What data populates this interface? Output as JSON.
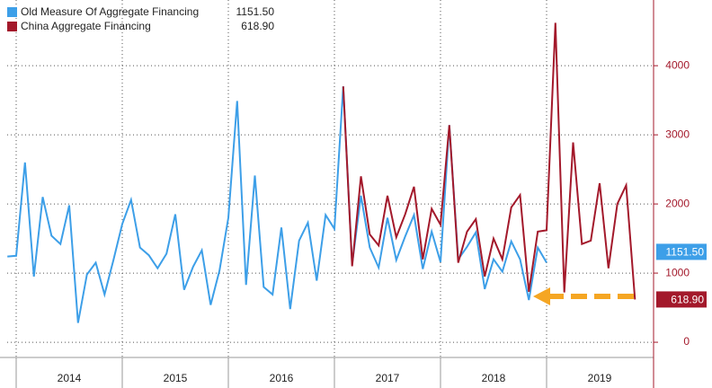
{
  "chart_data": {
    "type": "line",
    "x_labels": [
      "2014",
      "2015",
      "2016",
      "2017",
      "2018",
      "2019"
    ],
    "ylim": [
      -220,
      4950
    ],
    "yticks": [
      0,
      1000,
      2000,
      3000,
      4000
    ],
    "grid": true,
    "y_axis_side": "right",
    "legend": "top-left",
    "series": [
      {
        "name": "Old Measure Of Aggregate Financing",
        "color": "#3d9fe8",
        "last_value_label": "1151.50",
        "values": [
          1240,
          1250,
          2600,
          950,
          2100,
          1540,
          1420,
          1980,
          280,
          980,
          1150,
          690,
          1190,
          1710,
          2060,
          1370,
          1260,
          1070,
          1280,
          1850,
          760,
          1090,
          1330,
          540,
          1040,
          1800,
          3490,
          830,
          2410,
          800,
          690,
          1660,
          480,
          1470,
          1730,
          890,
          1840,
          1640,
          3700,
          1130,
          2120,
          1370,
          1080,
          1800,
          1190,
          1530,
          1840,
          1060,
          1600,
          1160,
          3140,
          1200,
          1380,
          1590,
          770,
          1200,
          1020,
          1460,
          1200,
          610,
          1370,
          1151.5,
          null,
          null,
          null,
          null,
          null,
          null,
          null,
          null,
          null,
          null
        ]
      },
      {
        "name": "China Aggregate Financing",
        "color": "#a3192b",
        "last_value_label": "618.90",
        "values": [
          null,
          null,
          null,
          null,
          null,
          null,
          null,
          null,
          null,
          null,
          null,
          null,
          null,
          null,
          null,
          null,
          null,
          null,
          null,
          null,
          null,
          null,
          null,
          null,
          null,
          null,
          null,
          null,
          null,
          null,
          null,
          null,
          null,
          null,
          null,
          null,
          null,
          null,
          3700,
          1100,
          2400,
          1560,
          1400,
          2120,
          1520,
          1850,
          2250,
          1200,
          1930,
          1700,
          3140,
          1150,
          1600,
          1780,
          950,
          1500,
          1200,
          1950,
          2130,
          730,
          1600,
          1620,
          4620,
          720,
          2890,
          1420,
          1470,
          2300,
          1070,
          2000,
          2270,
          618.9
        ]
      }
    ]
  }
}
